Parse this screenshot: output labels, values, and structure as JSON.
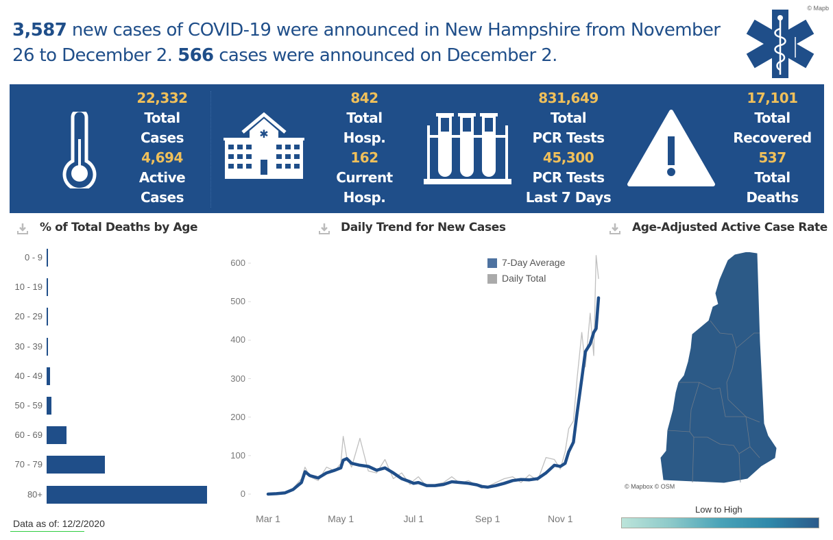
{
  "headline": {
    "weekly_new_cases": "3,587",
    "text_part1": " new cases of COVID-19 were announced in New Hampshire from November 26 to December 2. ",
    "daily_new_cases": "566",
    "text_part2": " cases were announced on December 2."
  },
  "attribution_top": "© Mapb",
  "logo_icon": "star-of-life-icon",
  "stats": [
    {
      "icon": "thermometer-icon",
      "items": [
        {
          "value": "22,332",
          "label1": "Total",
          "label2": "Cases"
        },
        {
          "value": "4,694",
          "label1": "Active",
          "label2": "Cases"
        }
      ]
    },
    {
      "icon": "hospital-icon",
      "items": [
        {
          "value": "842",
          "label1": "Total",
          "label2": "Hosp."
        },
        {
          "value": "162",
          "label1": "Current",
          "label2": "Hosp."
        }
      ]
    },
    {
      "icon": "test-tubes-icon",
      "items": [
        {
          "value": "831,649",
          "label1": "Total",
          "label2": "PCR Tests"
        },
        {
          "value": "45,300",
          "label1": "PCR Tests",
          "label2": "Last 7 Days"
        }
      ]
    },
    {
      "icon": "warning-icon",
      "items": [
        {
          "value": "17,101",
          "label1": "Total",
          "label2": "Recovered"
        },
        {
          "value": "537",
          "label1": "Total",
          "label2": "Deaths"
        }
      ]
    }
  ],
  "colors": {
    "brand": "#1f4e89",
    "stat_value": "#f0c05a",
    "daily_total": "#bfbfbf",
    "avg_line": "#1f4e89"
  },
  "sections": {
    "deaths_by_age": "% of Total Deaths by Age",
    "daily_trend": "Daily Trend for New Cases",
    "case_rate_map": "Age-Adjusted Active Case Rate"
  },
  "data_as_of": "Data as of: 12/2/2020",
  "map": {
    "credit": "© Mapbox © OSM",
    "legend_title": "Low to High",
    "region": "New Hampshire counties"
  },
  "chart_data": [
    {
      "type": "bar",
      "title": "% of Total Deaths by Age",
      "orientation": "horizontal",
      "categories": [
        "0 - 9",
        "10 - 19",
        "20 - 29",
        "30 - 39",
        "40 - 49",
        "50 - 59",
        "60 - 69",
        "70 - 79",
        "80+"
      ],
      "values": [
        0.1,
        0.1,
        0.1,
        0.2,
        1.3,
        2.0,
        8.0,
        23.5,
        65.0
      ],
      "xlabel": "",
      "ylabel": "",
      "xlim": [
        0,
        65
      ]
    },
    {
      "type": "line",
      "title": "Daily Trend for New Cases",
      "xlabel": "",
      "ylabel": "",
      "ylim": [
        0,
        600
      ],
      "yticks": [
        0,
        100,
        200,
        300,
        400,
        500,
        600
      ],
      "xticks": [
        "Mar 1",
        "May 1",
        "Jul 1",
        "Sep 1",
        "Nov 1"
      ],
      "xtick_days": [
        0,
        61,
        122,
        184,
        245
      ],
      "legend": [
        "7-Day Average",
        "Daily Total"
      ],
      "legend_position": "top-right",
      "x_days": [
        0,
        7,
        14,
        21,
        28,
        31,
        35,
        42,
        49,
        56,
        61,
        63,
        66,
        70,
        77,
        84,
        91,
        98,
        105,
        112,
        119,
        122,
        126,
        133,
        140,
        147,
        154,
        161,
        168,
        175,
        179,
        184,
        191,
        198,
        205,
        212,
        219,
        226,
        233,
        240,
        245,
        249,
        252,
        256,
        259,
        263,
        266,
        270,
        273,
        275,
        277
      ],
      "series": [
        {
          "name": "7-Day Average",
          "values": [
            0,
            1,
            3,
            12,
            30,
            58,
            48,
            42,
            55,
            62,
            68,
            88,
            92,
            80,
            75,
            72,
            62,
            68,
            55,
            40,
            32,
            28,
            30,
            22,
            22,
            25,
            32,
            30,
            28,
            24,
            20,
            18,
            22,
            28,
            35,
            38,
            37,
            40,
            55,
            75,
            72,
            80,
            110,
            135,
            210,
            300,
            370,
            390,
            420,
            430,
            510
          ]
        },
        {
          "name": "Daily Total",
          "values": [
            0,
            2,
            5,
            15,
            40,
            70,
            45,
            35,
            70,
            60,
            80,
            150,
            95,
            70,
            145,
            60,
            55,
            90,
            40,
            55,
            25,
            35,
            45,
            20,
            25,
            30,
            45,
            28,
            35,
            22,
            15,
            20,
            30,
            40,
            45,
            30,
            50,
            35,
            95,
            90,
            65,
            110,
            170,
            190,
            300,
            420,
            330,
            470,
            360,
            620,
            560
          ]
        }
      ]
    }
  ]
}
